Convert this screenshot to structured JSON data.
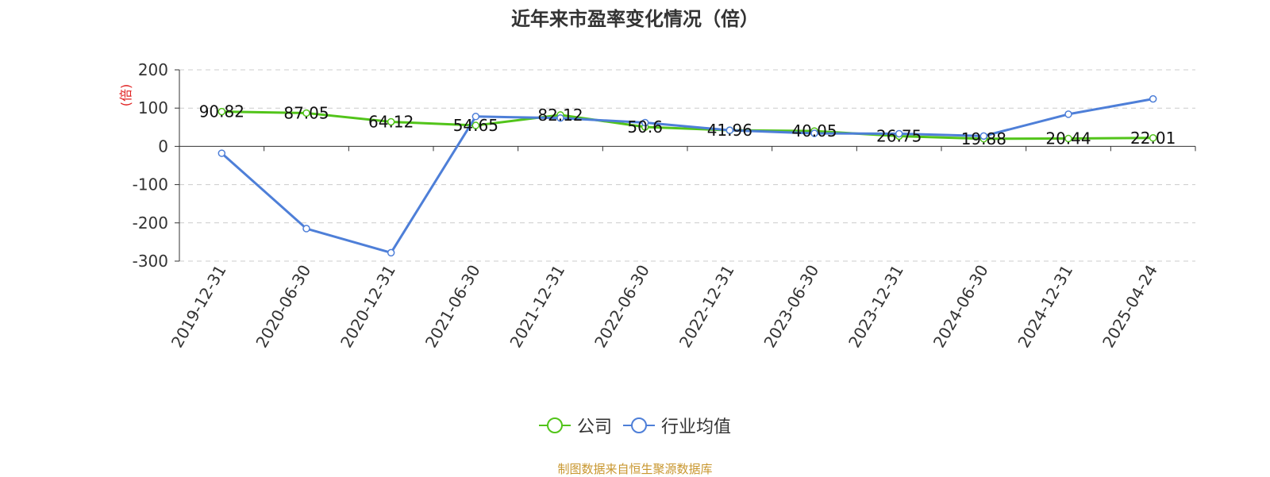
{
  "title": "近年来市盈率变化情况（倍）",
  "y_unit_label": "(倍)",
  "source_note": "制图数据来自恒生聚源数据库",
  "colors": {
    "company": "#52c41a",
    "industry": "#4e7fd8",
    "unit_label": "#e02020",
    "grid": "#cccccc",
    "axis": "#333333"
  },
  "chart_data": {
    "type": "line",
    "categories": [
      "2019-12-31",
      "2020-06-30",
      "2020-12-31",
      "2021-06-30",
      "2021-12-31",
      "2022-06-30",
      "2022-12-31",
      "2023-06-30",
      "2023-12-31",
      "2024-06-30",
      "2024-12-31",
      "2025-04-24"
    ],
    "ylim": [
      -300,
      200
    ],
    "yticks": [
      200,
      100,
      0,
      -100,
      -200,
      -300
    ],
    "ytick_labels": [
      "200",
      "100",
      "0",
      "-100",
      "-200",
      "-300"
    ],
    "grid": true,
    "legend_position": "bottom",
    "series": [
      {
        "name": "公司",
        "color": "#52c41a",
        "values": [
          90.82,
          87.05,
          64.12,
          54.65,
          82.12,
          50.6,
          41.96,
          40.05,
          26.75,
          19.88,
          20.44,
          22.01
        ],
        "labels": [
          "90.82",
          "87.05",
          "64.12",
          "54.65",
          "82.12",
          "50.6",
          "41.96",
          "40.05",
          "26.75",
          "19.88",
          "20.44",
          "22.01"
        ]
      },
      {
        "name": "行业均值",
        "color": "#4e7fd8",
        "values": [
          -18,
          -215,
          -278,
          78,
          74,
          62,
          42,
          34,
          33,
          27,
          84,
          124
        ]
      }
    ]
  }
}
